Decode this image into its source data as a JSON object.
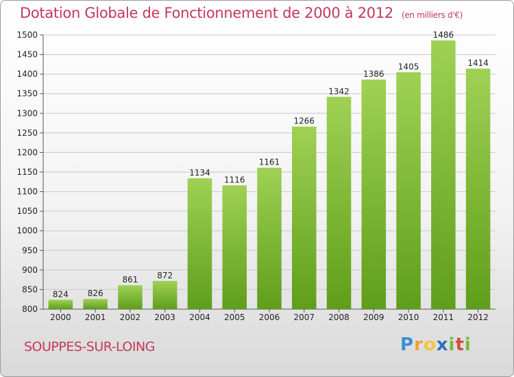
{
  "title": "Dotation Globale de Fonctionnement de 2000 à 2012",
  "subtitle": "(en milliers d'€)",
  "town": "SOUPPES-SUR-LOING",
  "logo": "Proxiti",
  "colors": {
    "title": "#c4385a",
    "bar_top": "#9fd155",
    "bar_bottom": "#5f9e1a",
    "grid": "#c8c8c8"
  },
  "chart_data": {
    "type": "bar",
    "title": "Dotation Globale de Fonctionnement de 2000 à 2012",
    "subtitle": "(en milliers d'€)",
    "xlabel": "",
    "ylabel": "",
    "categories": [
      "2000",
      "2001",
      "2002",
      "2003",
      "2004",
      "2005",
      "2006",
      "2007",
      "2008",
      "2009",
      "2010",
      "2011",
      "2012"
    ],
    "values": [
      824,
      826,
      861,
      872,
      1134,
      1116,
      1161,
      1266,
      1342,
      1386,
      1405,
      1486,
      1414
    ],
    "ylim": [
      800,
      1500
    ],
    "yticks": [
      800,
      850,
      900,
      950,
      1000,
      1050,
      1100,
      1150,
      1200,
      1250,
      1300,
      1350,
      1400,
      1450,
      1500
    ],
    "grid": true,
    "legend": "none"
  }
}
